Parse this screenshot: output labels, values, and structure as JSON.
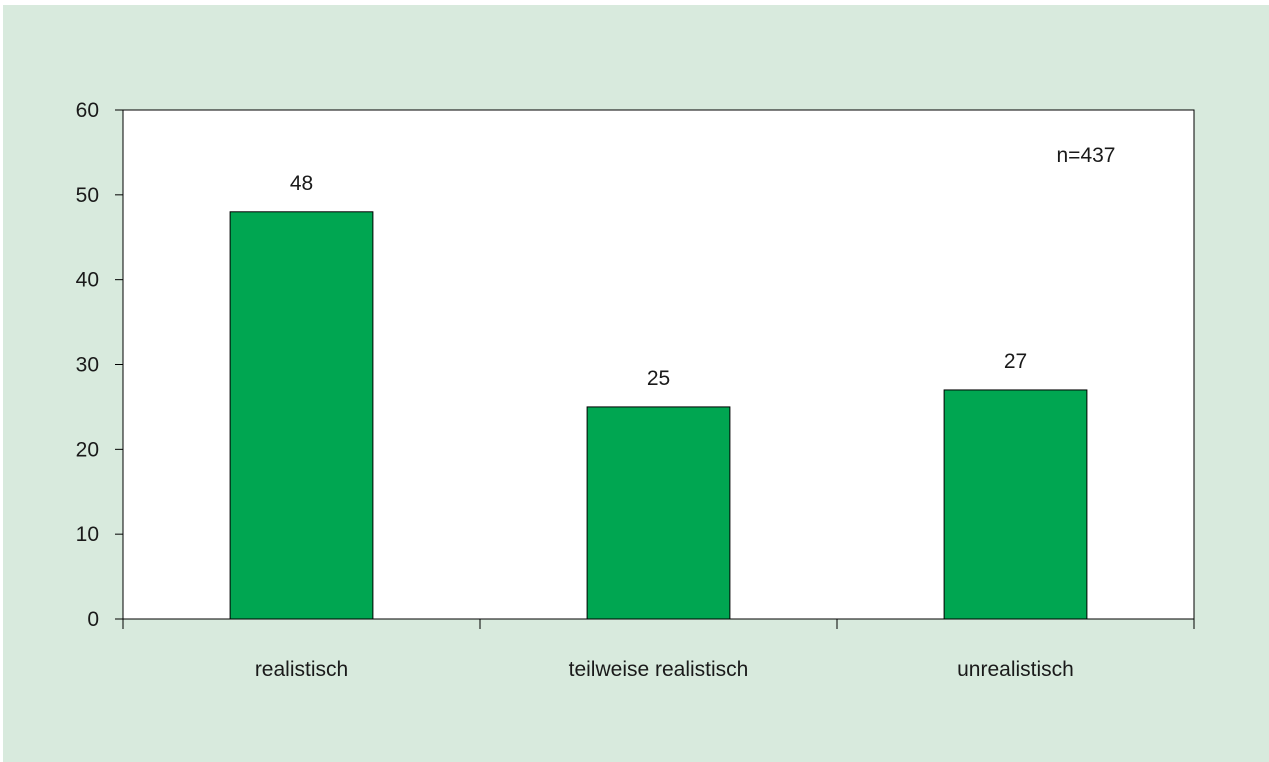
{
  "chart_data": {
    "type": "bar",
    "categories": [
      "realistisch",
      "teilweise realistisch",
      "unrealistisch"
    ],
    "values": [
      48,
      25,
      27
    ],
    "data_labels": [
      "48",
      "25",
      "27"
    ],
    "y_ticks": [
      "0",
      "10",
      "20",
      "30",
      "40",
      "50",
      "60"
    ],
    "ylim": [
      0,
      60
    ],
    "title": "",
    "xlabel": "",
    "ylabel": "",
    "annotation": "n=437",
    "grid": false,
    "legend": "none",
    "bar_color": "#00a651",
    "background_color": "#d8eadd",
    "plot_background": "#ffffff"
  }
}
